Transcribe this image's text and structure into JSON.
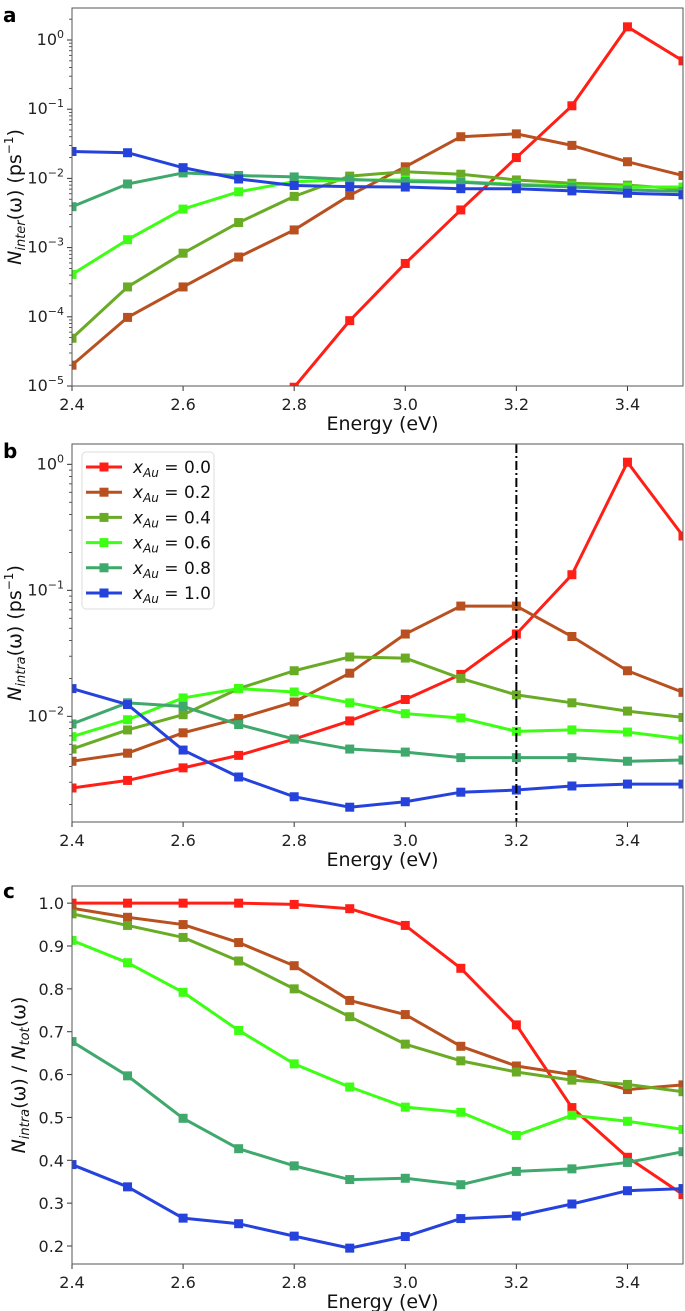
{
  "chart_data": [
    {
      "panel": "a",
      "type": "line",
      "yscale": "log",
      "xlabel": "Energy (eV)",
      "ylabel": {
        "main": "N",
        "sub": "inter",
        "rest": "(ω) (ps",
        "sup": "−1",
        "end": ")"
      },
      "xlim": [
        2.4,
        3.5
      ],
      "ylim": [
        1e-05,
        2.9
      ],
      "xticks": [
        "2.4",
        "2.6",
        "2.8",
        "3.0",
        "3.2",
        "3.4"
      ],
      "yticks_exponents": [
        0,
        -1,
        -2,
        -3,
        -4,
        -5
      ],
      "x": [
        2.4,
        2.5,
        2.6,
        2.7,
        2.8,
        2.9,
        3.0,
        3.1,
        3.2,
        3.3,
        3.4,
        3.5
      ],
      "series": [
        {
          "name": "x_Au = 0.0",
          "color": "#ff1f17",
          "values": [
            null,
            null,
            null,
            null,
            9.6e-06,
            8.8e-05,
            0.00059,
            0.0035,
            0.02,
            0.112,
            1.55,
            0.5
          ]
        },
        {
          "name": "x_Au = 0.2",
          "color": "#b8501f",
          "values": [
            2e-05,
            9.8e-05,
            0.00027,
            0.00073,
            0.0018,
            0.0057,
            0.0147,
            0.04,
            0.044,
            0.03,
            0.0174,
            0.011
          ]
        },
        {
          "name": "x_Au = 0.4",
          "color": "#69ab24",
          "values": [
            4.9e-05,
            0.00027,
            0.00083,
            0.0023,
            0.0055,
            0.0108,
            0.0125,
            0.0115,
            0.0095,
            0.0085,
            0.008,
            0.007
          ]
        },
        {
          "name": "x_Au = 0.6",
          "color": "#3dff14",
          "values": [
            0.00041,
            0.0013,
            0.0036,
            0.0064,
            0.009,
            0.0095,
            0.0095,
            0.009,
            0.0082,
            0.0078,
            0.0075,
            0.0075
          ]
        },
        {
          "name": "x_Au = 0.8",
          "color": "#3fa86c",
          "values": [
            0.0039,
            0.0083,
            0.012,
            0.011,
            0.0105,
            0.0097,
            0.009,
            0.0088,
            0.008,
            0.0075,
            0.0068,
            0.0065
          ]
        },
        {
          "name": "x_Au = 1.0",
          "color": "#2543dc",
          "values": [
            0.0245,
            0.0235,
            0.0143,
            0.0098,
            0.0079,
            0.0076,
            0.0075,
            0.0071,
            0.0071,
            0.0066,
            0.0061,
            0.0058
          ]
        }
      ]
    },
    {
      "panel": "b",
      "type": "line",
      "yscale": "log",
      "xlabel": "Energy (eV)",
      "ylabel": {
        "main": "N",
        "sub": "intra",
        "rest": "(ω) (ps",
        "sup": "−1",
        "end": ")"
      },
      "xlim": [
        2.4,
        3.5
      ],
      "ylim": [
        0.00145,
        1.45
      ],
      "xticks": [
        "2.4",
        "2.6",
        "2.8",
        "3.0",
        "3.2",
        "3.4"
      ],
      "yticks_exponents": [
        0,
        -1,
        -2
      ],
      "vline": {
        "x": 3.2,
        "style": "dash-dot"
      },
      "legend": {
        "placement": "top-left",
        "var": "x",
        "sub": "Au"
      },
      "x": [
        2.4,
        2.5,
        2.6,
        2.7,
        2.8,
        2.9,
        3.0,
        3.1,
        3.2,
        3.3,
        3.4,
        3.5
      ],
      "series": [
        {
          "name": "x_Au = 0.0",
          "label_value": "= 0.0",
          "color": "#ff1f17",
          "values": [
            0.0027,
            0.0031,
            0.0039,
            0.0049,
            0.0066,
            0.0092,
            0.0136,
            0.0215,
            0.045,
            0.133,
            1.04,
            0.27
          ]
        },
        {
          "name": "x_Au = 0.2",
          "label_value": "= 0.2",
          "color": "#b8501f",
          "values": [
            0.0044,
            0.0051,
            0.0074,
            0.0096,
            0.013,
            0.022,
            0.045,
            0.075,
            0.075,
            0.043,
            0.023,
            0.0155
          ]
        },
        {
          "name": "x_Au = 0.4",
          "label_value": "= 0.4",
          "color": "#69ab24",
          "values": [
            0.0055,
            0.0078,
            0.0103,
            0.0166,
            0.023,
            0.0296,
            0.029,
            0.02,
            0.0148,
            0.0128,
            0.011,
            0.0098
          ]
        },
        {
          "name": "x_Au = 0.6",
          "label_value": "= 0.6",
          "color": "#3dff14",
          "values": [
            0.0069,
            0.0094,
            0.014,
            0.0166,
            0.0156,
            0.0128,
            0.0105,
            0.0097,
            0.0076,
            0.0078,
            0.0075,
            0.0066
          ]
        },
        {
          "name": "x_Au = 0.8",
          "label_value": "= 0.8",
          "color": "#3fa86c",
          "values": [
            0.0087,
            0.0128,
            0.012,
            0.0086,
            0.0066,
            0.0055,
            0.0052,
            0.0047,
            0.0047,
            0.0047,
            0.0044,
            0.0045
          ]
        },
        {
          "name": "x_Au = 1.0",
          "label_value": "= 1.0",
          "color": "#2543dc",
          "values": [
            0.0166,
            0.0124,
            0.0054,
            0.0033,
            0.0023,
            0.0019,
            0.0021,
            0.0025,
            0.0026,
            0.0028,
            0.0029,
            0.0029
          ]
        }
      ]
    },
    {
      "panel": "c",
      "type": "line",
      "yscale": "linear",
      "xlabel": "Energy (eV)",
      "ylabel": {
        "main": "N",
        "sub": "intra",
        "rest": "(ω) / ",
        "main2": "N",
        "sub2": "tot",
        "end": "(ω)"
      },
      "xlim": [
        2.4,
        3.5
      ],
      "ylim": [
        0.158,
        1.04
      ],
      "xticks": [
        "2.4",
        "2.6",
        "2.8",
        "3.0",
        "3.2",
        "3.4"
      ],
      "yticks": [
        "0.2",
        "0.3",
        "0.4",
        "0.5",
        "0.6",
        "0.7",
        "0.8",
        "0.9",
        "1.0"
      ],
      "x": [
        2.4,
        2.5,
        2.6,
        2.7,
        2.8,
        2.9,
        3.0,
        3.1,
        3.2,
        3.3,
        3.4,
        3.5
      ],
      "series": [
        {
          "name": "x_Au = 0.0",
          "color": "#ff1f17",
          "values": [
            1.0,
            1.0,
            1.0,
            1.0,
            0.997,
            0.987,
            0.948,
            0.848,
            0.716,
            0.523,
            0.407,
            0.32
          ]
        },
        {
          "name": "x_Au = 0.2",
          "color": "#b8501f",
          "values": [
            0.988,
            0.967,
            0.95,
            0.908,
            0.854,
            0.773,
            0.74,
            0.666,
            0.62,
            0.6,
            0.565,
            0.576
          ]
        },
        {
          "name": "x_Au = 0.4",
          "color": "#69ab24",
          "values": [
            0.975,
            0.948,
            0.92,
            0.865,
            0.8,
            0.735,
            0.671,
            0.632,
            0.606,
            0.587,
            0.577,
            0.56
          ]
        },
        {
          "name": "x_Au = 0.6",
          "color": "#3dff14",
          "values": [
            0.913,
            0.861,
            0.792,
            0.703,
            0.625,
            0.571,
            0.524,
            0.512,
            0.458,
            0.505,
            0.491,
            0.472
          ]
        },
        {
          "name": "x_Au = 0.8",
          "color": "#3fa86c",
          "values": [
            0.677,
            0.597,
            0.498,
            0.427,
            0.387,
            0.355,
            0.358,
            0.343,
            0.374,
            0.38,
            0.395,
            0.42
          ]
        },
        {
          "name": "x_Au = 1.0",
          "color": "#2543dc",
          "values": [
            0.39,
            0.338,
            0.265,
            0.252,
            0.223,
            0.195,
            0.222,
            0.264,
            0.27,
            0.298,
            0.329,
            0.334
          ]
        }
      ]
    }
  ],
  "panel_letters": [
    "a",
    "b",
    "c"
  ]
}
